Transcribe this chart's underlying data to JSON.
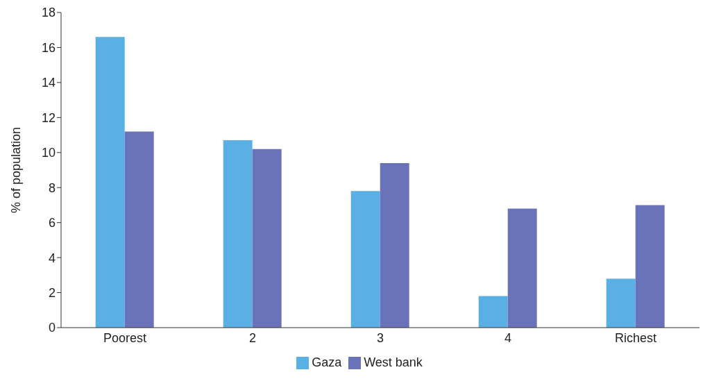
{
  "chart_data": {
    "type": "bar",
    "ylabel": "% of population",
    "categories": [
      "Poorest",
      "2",
      "3",
      "4",
      "Richest"
    ],
    "series": [
      {
        "name": "Gaza",
        "color": "#5ab0e4",
        "values": [
          16.6,
          10.7,
          7.8,
          1.8,
          2.8
        ]
      },
      {
        "name": "West bank",
        "color": "#6a72b8",
        "values": [
          11.2,
          10.2,
          9.4,
          6.8,
          7.0
        ]
      }
    ],
    "ylim": [
      0,
      18
    ],
    "yticks": [
      0,
      2,
      4,
      6,
      8,
      10,
      12,
      14,
      16,
      18
    ],
    "grid": false,
    "legend": "bottom"
  }
}
